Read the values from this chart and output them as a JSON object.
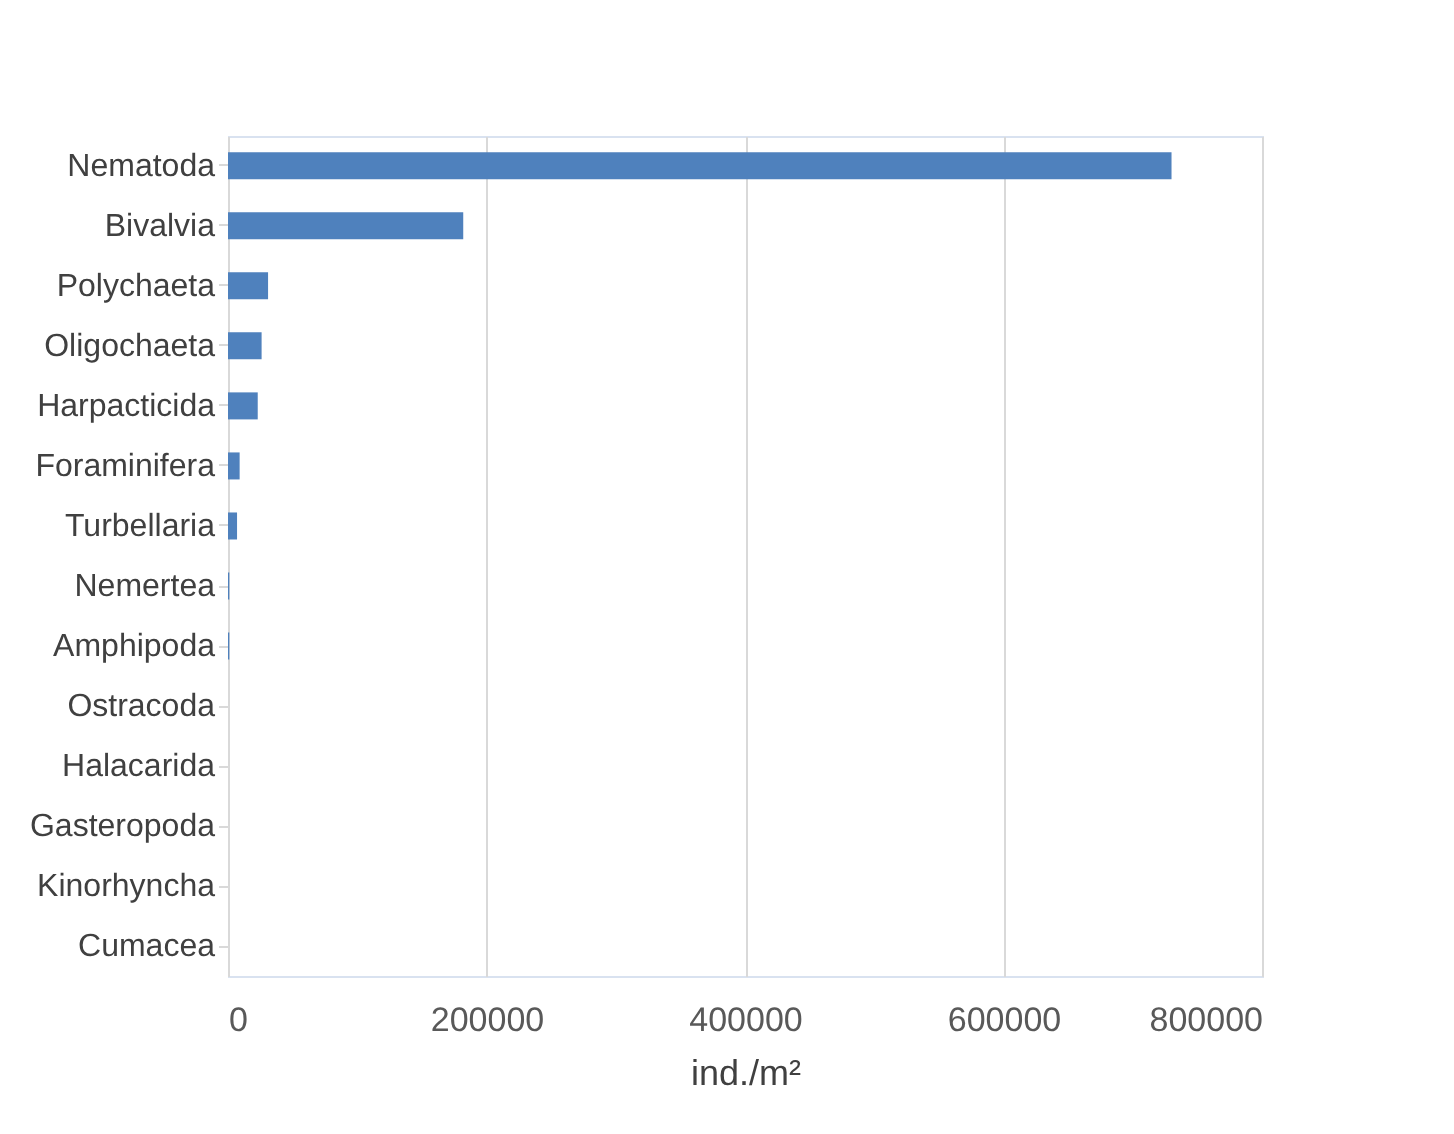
{
  "chart_data": {
    "type": "bar",
    "orientation": "horizontal",
    "xlabel": "ind./m²",
    "categories": [
      "Nematoda",
      "Bivalvia",
      "Polychaeta",
      "Oligochaeta",
      "Harpacticida",
      "Foraminifera",
      "Turbellaria",
      "Nemertea",
      "Amphipoda",
      "Ostracoda",
      "Halacarida",
      "Gasteropoda",
      "Kinorhyncha",
      "Cumacea"
    ],
    "values": [
      730000,
      182000,
      31000,
      26000,
      23000,
      9000,
      7000,
      1000,
      1000,
      0,
      0,
      0,
      0,
      0
    ],
    "color": "#4f81bd",
    "xlim": [
      0,
      800000
    ],
    "xticks": [
      0,
      200000,
      400000,
      600000,
      800000
    ],
    "grid": "x"
  }
}
